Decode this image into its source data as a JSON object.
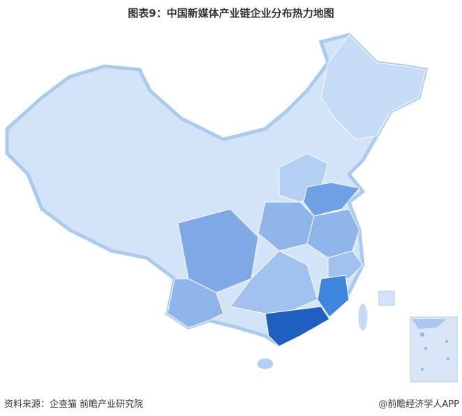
{
  "title": "图表9：中国新媒体产业链企业分布热力地图",
  "source": "资料来源：企查猫 前瞻产业研究院",
  "credit": "@前瞻经济学人APP",
  "colors": {
    "level_1": "#d3e3f8",
    "level_2": "#b3cff3",
    "level_3": "#8fb5ea",
    "level_4": "#6f9fe4",
    "level_5": "#3f86df",
    "level_6": "#1f5fbf",
    "border": "#9ec3ea"
  }
}
